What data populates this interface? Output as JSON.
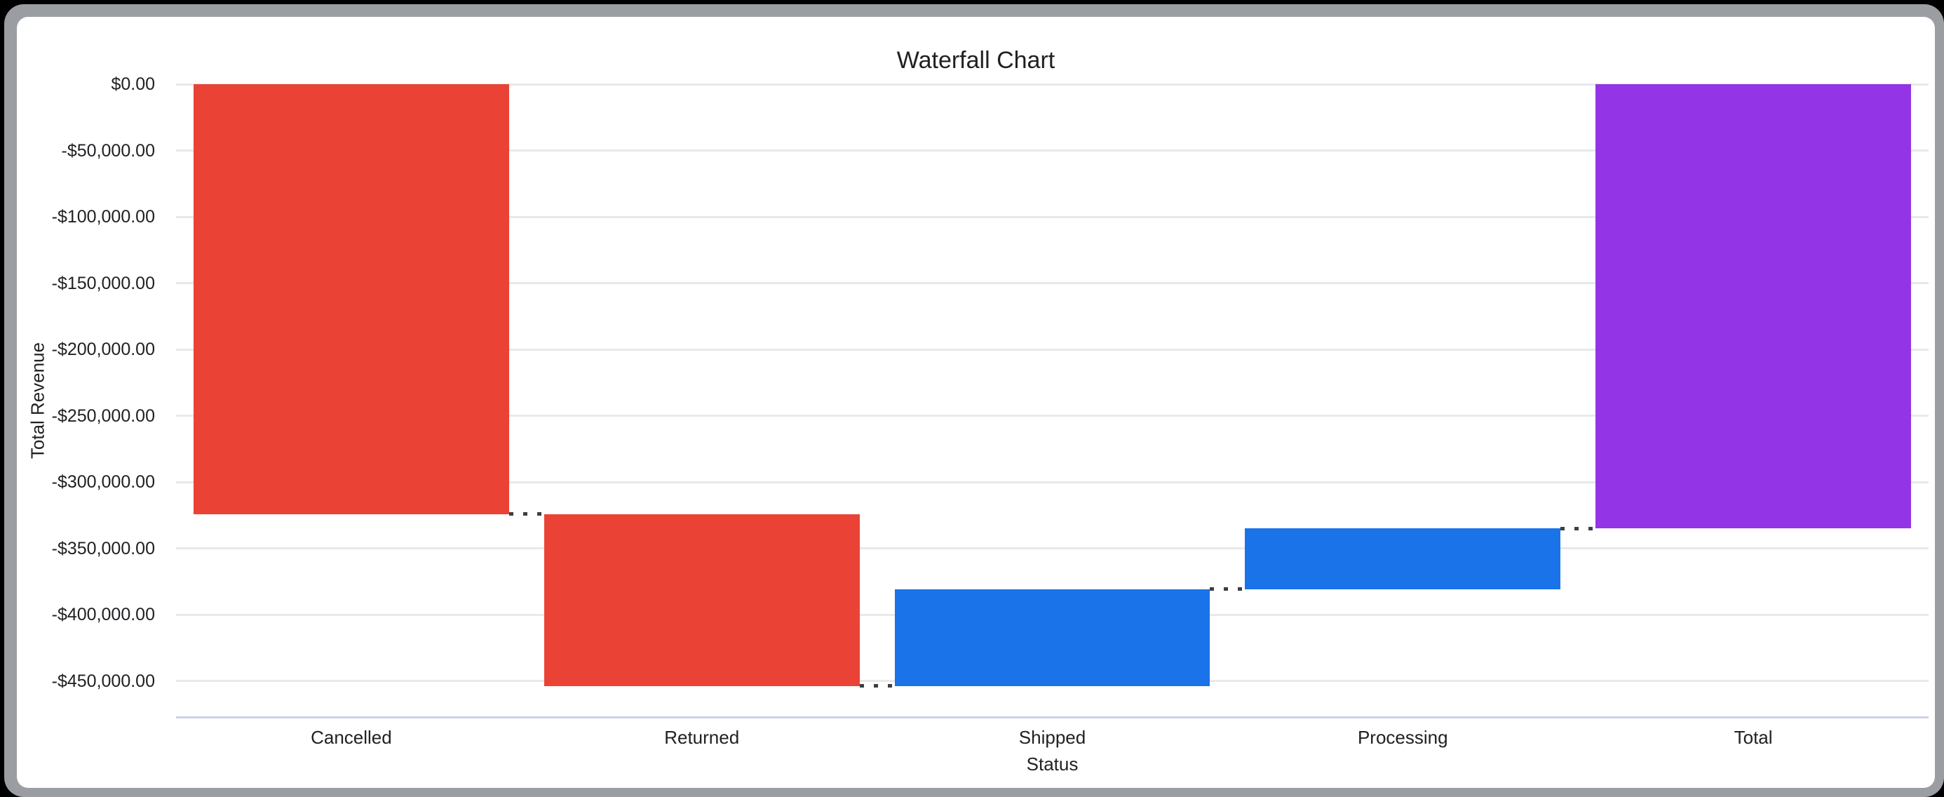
{
  "frame": {
    "page_background": "#000000",
    "border_color": "#9a9da1",
    "card_color": "#ffffff"
  },
  "chart_data": {
    "type": "waterfall",
    "title": "Waterfall Chart",
    "xlabel": "Status",
    "ylabel": "Total Revenue",
    "categories": [
      "Cancelled",
      "Returned",
      "Shipped",
      "Processing",
      "Total"
    ],
    "series": [
      {
        "name": "Cancelled",
        "delta": -324000,
        "start": 0,
        "end": -324000,
        "color": "#EA4335"
      },
      {
        "name": "Returned",
        "delta": -129500,
        "start": -324000,
        "end": -453500,
        "color": "#EA4335"
      },
      {
        "name": "Shipped",
        "delta": 73000,
        "start": -453500,
        "end": -380500,
        "color": "#1A73E8"
      },
      {
        "name": "Processing",
        "delta": 45500,
        "start": -380500,
        "end": -335000,
        "color": "#9334E6-placeholder"
      },
      {
        "name": "Total",
        "delta": -335000,
        "start": 0,
        "end": -335000,
        "color": "#9334E6"
      }
    ],
    "y_ticks": [
      {
        "value": 0,
        "label": "$0.00"
      },
      {
        "value": -50000,
        "label": "-$50,000.00"
      },
      {
        "value": -100000,
        "label": "-$100,000.00"
      },
      {
        "value": -150000,
        "label": "-$150,000.00"
      },
      {
        "value": -200000,
        "label": "-$200,000.00"
      },
      {
        "value": -250000,
        "label": "-$250,000.00"
      },
      {
        "value": -300000,
        "label": "-$300,000.00"
      },
      {
        "value": -350000,
        "label": "-$350,000.00"
      },
      {
        "value": -400000,
        "label": "-$400,000.00"
      },
      {
        "value": -450000,
        "label": "-$450,000.00"
      }
    ],
    "ylim": [
      -477000,
      0
    ],
    "grid": true,
    "legend": false,
    "bar_colors": {
      "negative": "#EA4335",
      "positive": "#1A73E8",
      "total": "#9334E6"
    },
    "connector_color": "#3c4043",
    "gridline_color": "#e9e9e9",
    "axis_line_color": "#ccd3e3",
    "text_color": "#202124"
  }
}
